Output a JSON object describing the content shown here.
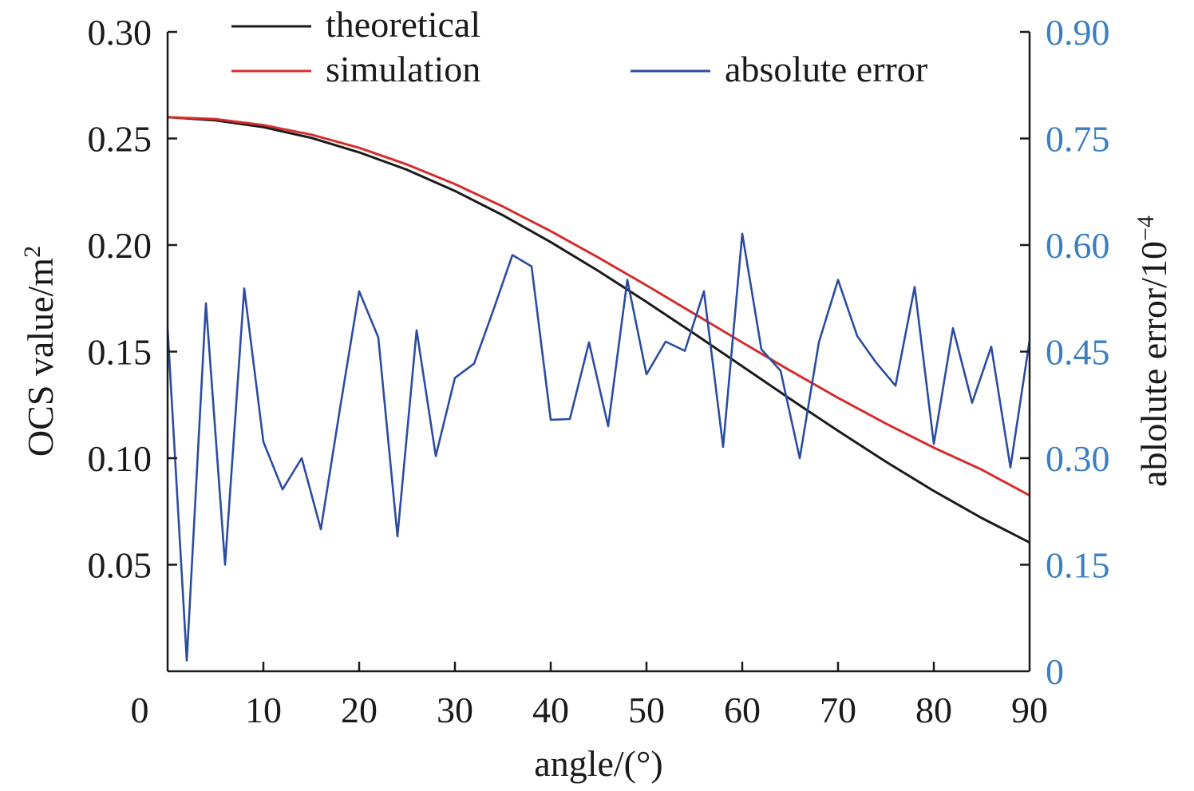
{
  "chart_data": {
    "type": "line",
    "xlabel": "angle/(°)",
    "ylabel_left": "OCS value/m",
    "ylabel_left_sup": "2",
    "ylabel_right": "ablolute error/10",
    "ylabel_right_sup": "−4",
    "xlim": [
      0,
      90
    ],
    "ylim_left": [
      0,
      0.3
    ],
    "ylim_right": [
      0,
      0.9
    ],
    "x_ticks": [
      "0",
      "10",
      "20",
      "30",
      "40",
      "50",
      "60",
      "70",
      "80",
      "90"
    ],
    "x_tick_values": [
      0,
      10,
      20,
      30,
      40,
      50,
      60,
      70,
      80,
      90
    ],
    "y_left_ticks": [
      "0.05",
      "0.10",
      "0.15",
      "0.20",
      "0.25",
      "0.30"
    ],
    "y_left_tick_values": [
      0.05,
      0.1,
      0.15,
      0.2,
      0.25,
      0.3
    ],
    "y_right_ticks": [
      "0",
      "0.15",
      "0.30",
      "0.45",
      "0.60",
      "0.75",
      "0.90"
    ],
    "y_right_tick_values": [
      0,
      0.15,
      0.3,
      0.45,
      0.6,
      0.75,
      0.9
    ],
    "legend_placement": "top",
    "grid": false,
    "colors": {
      "theoretical": "#1a1a1a",
      "simulation": "#d42d2d",
      "absolute_error": "#2b4ca0",
      "right_axis_text": "#3a7fc1"
    },
    "series": [
      {
        "name": "theoretical",
        "axis": "left",
        "x": [
          0,
          5,
          10,
          15,
          20,
          25,
          30,
          35,
          40,
          45,
          50,
          55,
          60,
          65,
          70,
          75,
          80,
          85,
          90
        ],
        "values": [
          0.26,
          0.2585,
          0.2553,
          0.2503,
          0.2435,
          0.2353,
          0.2254,
          0.214,
          0.2014,
          0.1878,
          0.1733,
          0.1584,
          0.1431,
          0.1278,
          0.1128,
          0.0983,
          0.0846,
          0.0719,
          0.0604
        ]
      },
      {
        "name": "simulation",
        "axis": "left",
        "x": [
          0,
          5,
          10,
          15,
          20,
          25,
          30,
          35,
          40,
          45,
          50,
          55,
          60,
          65,
          70,
          75,
          80,
          85,
          90
        ],
        "values": [
          0.26,
          0.2591,
          0.2563,
          0.2518,
          0.2456,
          0.2378,
          0.2286,
          0.2181,
          0.2065,
          0.1941,
          0.1811,
          0.1677,
          0.1543,
          0.1411,
          0.1283,
          0.1162,
          0.1049,
          0.0946,
          0.0825
        ]
      },
      {
        "name": "absolute error",
        "axis": "right",
        "x": [
          0,
          2,
          4,
          6,
          8,
          10,
          12,
          14,
          16,
          18,
          20,
          22,
          24,
          26,
          28,
          30,
          32,
          34,
          36,
          38,
          40,
          42,
          44,
          46,
          48,
          50,
          52,
          54,
          56,
          58,
          60,
          62,
          64,
          66,
          68,
          70,
          72,
          74,
          76,
          78,
          80,
          82,
          84,
          86,
          88,
          90
        ],
        "values": [
          0.482,
          0.015,
          0.518,
          0.15,
          0.539,
          0.323,
          0.256,
          0.3,
          0.2,
          0.37,
          0.535,
          0.47,
          0.19,
          0.48,
          0.303,
          0.413,
          0.433,
          0.508,
          0.586,
          0.57,
          0.354,
          0.355,
          0.463,
          0.345,
          0.551,
          0.418,
          0.464,
          0.451,
          0.535,
          0.316,
          0.616,
          0.453,
          0.423,
          0.3,
          0.463,
          0.551,
          0.472,
          0.434,
          0.402,
          0.541,
          0.32,
          0.483,
          0.378,
          0.457,
          0.287,
          0.466
        ]
      }
    ]
  }
}
